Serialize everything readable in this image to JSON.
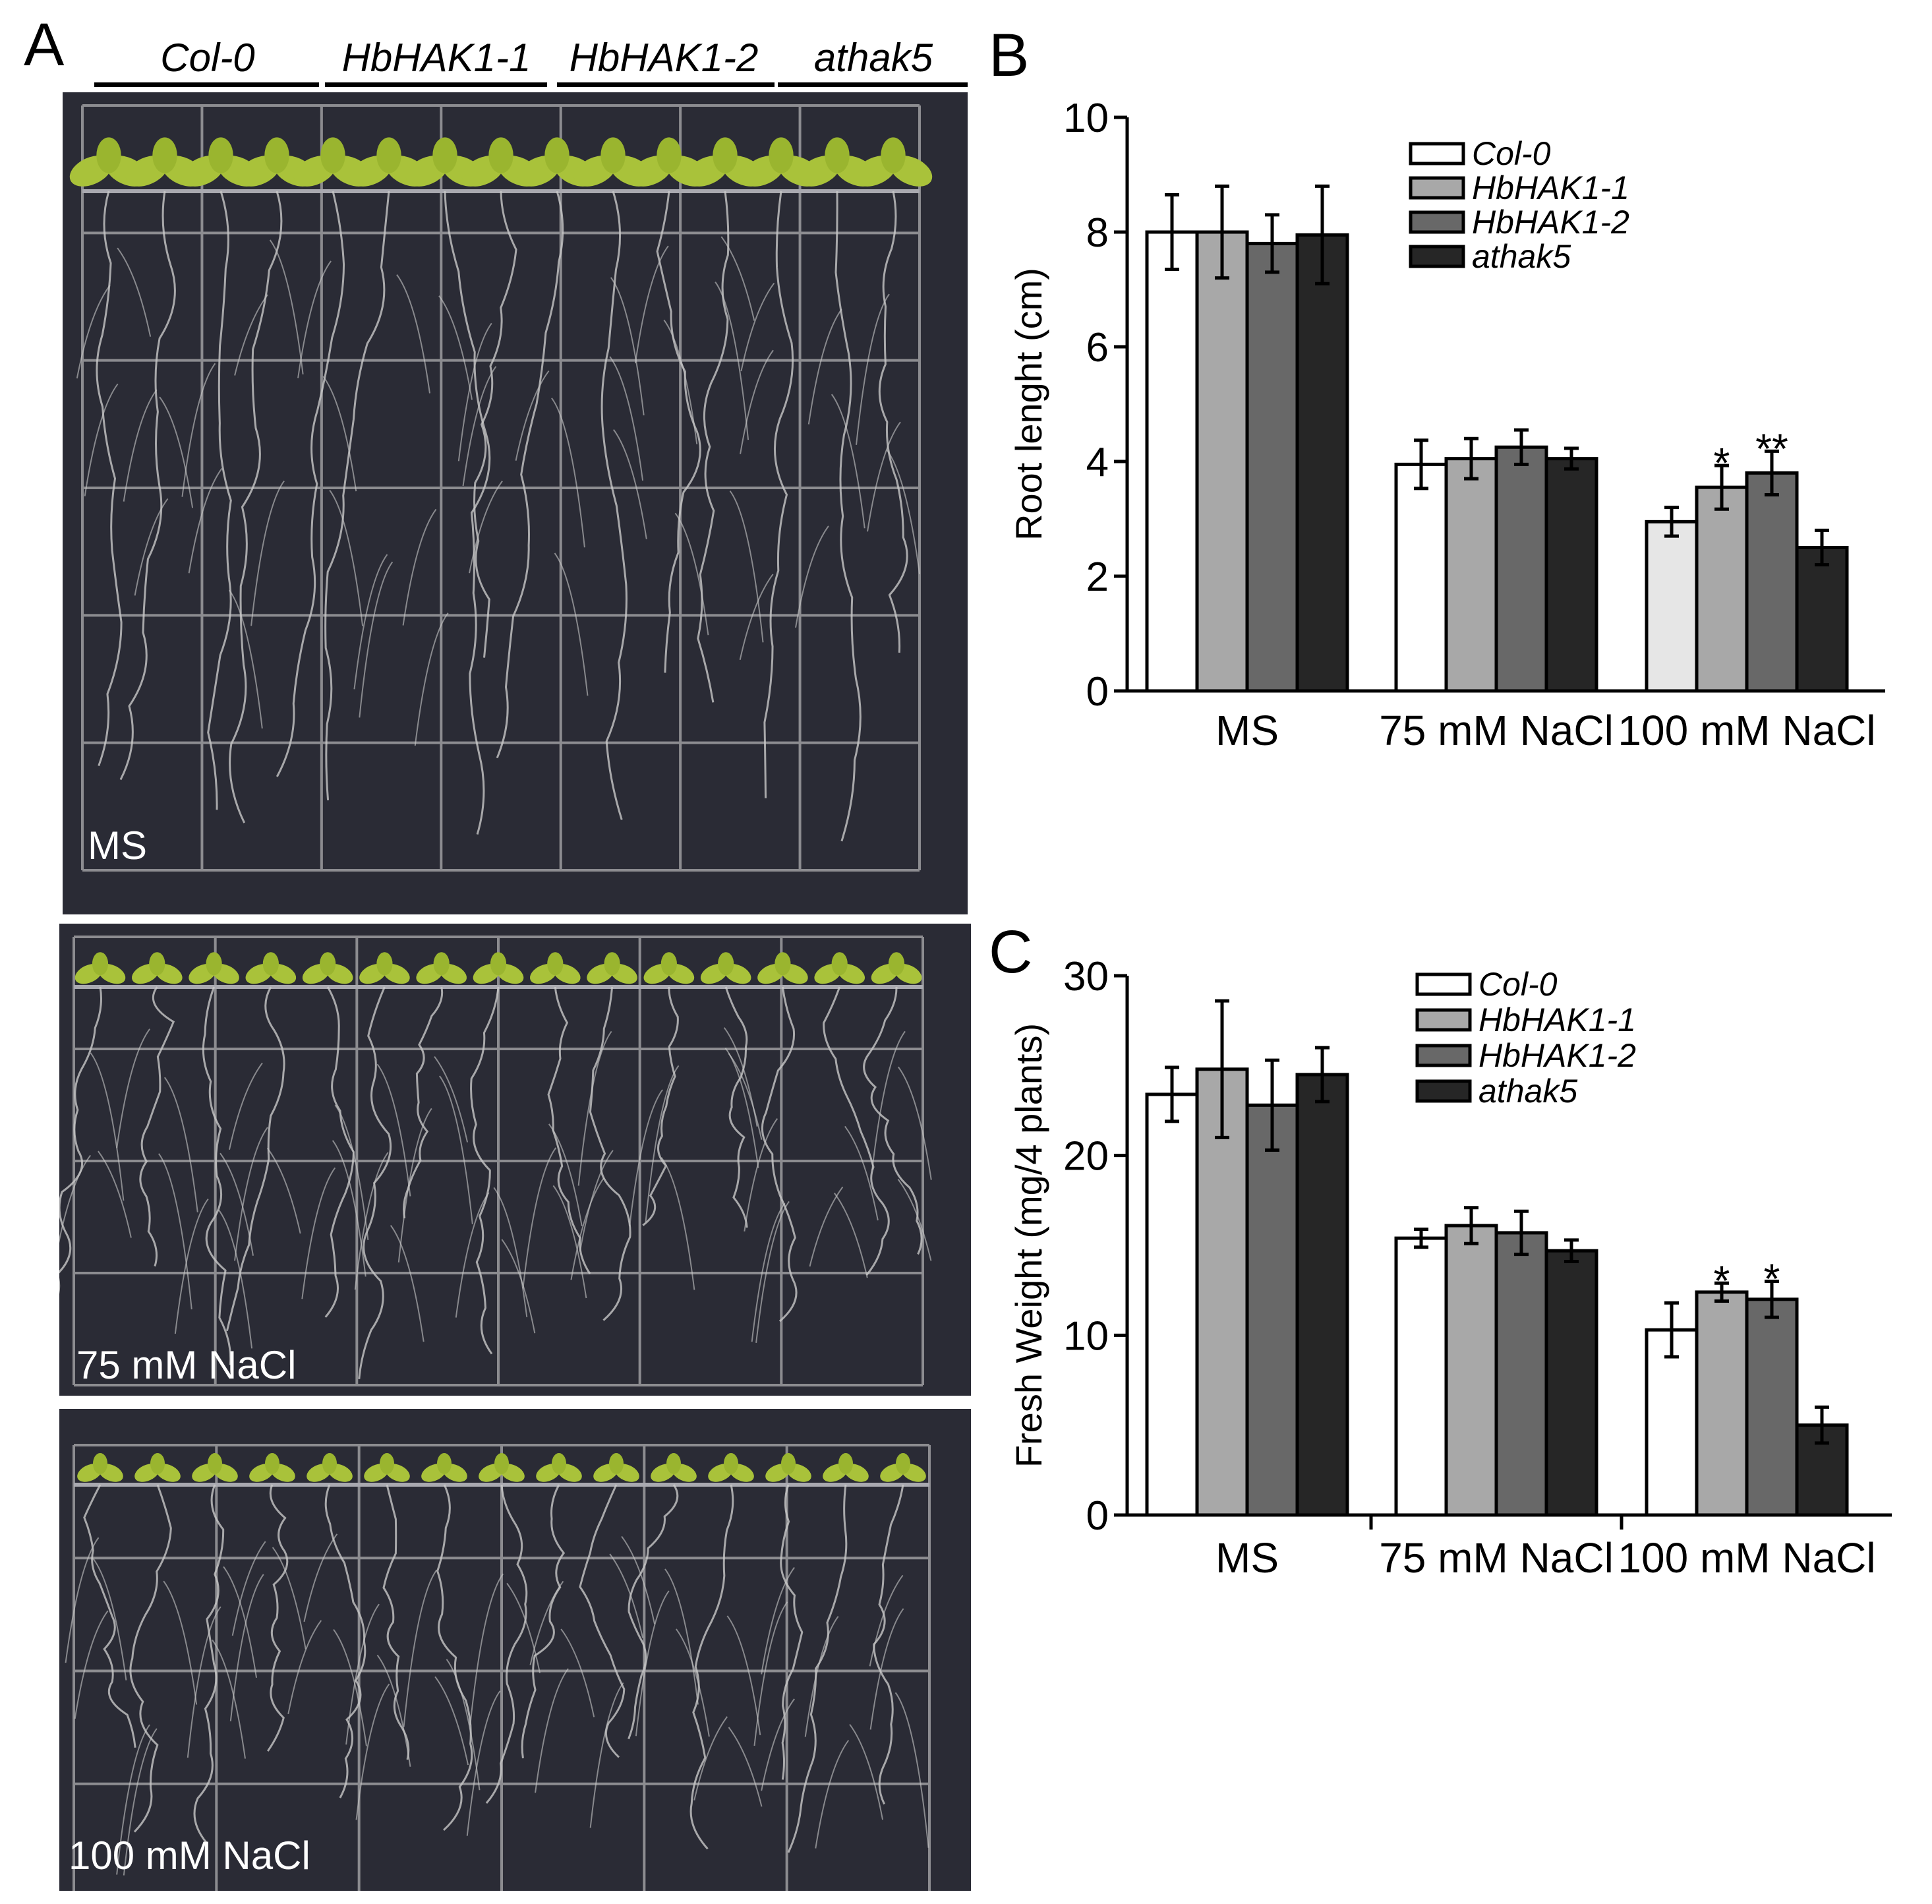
{
  "figure": {
    "panel_a": {
      "letter": "A",
      "genotypes": [
        "Col-0",
        "HbHAK1-1",
        "HbHAK1-2",
        "athak5"
      ],
      "plates": [
        {
          "label": "MS",
          "seedlings": 15
        },
        {
          "label": "75 mM NaCl",
          "seedlings": 15
        },
        {
          "label": "100 mM NaCl",
          "seedlings": 15
        }
      ]
    },
    "panel_b": {
      "letter": "B"
    },
    "panel_c": {
      "letter": "C"
    }
  },
  "colors": {
    "col0": "#ffffff",
    "hbhak1_1": "#a8a8a8",
    "hbhak1_2": "#686868",
    "athak5": "#262626",
    "col0_100mM_rootlength": "#e6e6e6",
    "plate_bg": "#2a2b35",
    "grid": "#8c8c90",
    "leaf": "#a9c23a",
    "root": "#c8c8c8"
  },
  "chart_data": [
    {
      "id": "root-length",
      "type": "bar",
      "title": "",
      "xlabel": "",
      "ylabel": "Root lenght (cm)",
      "ylim": [
        0,
        10
      ],
      "yticks": [
        0,
        2,
        4,
        6,
        8,
        10
      ],
      "categories": [
        "MS",
        "75 mM NaCl",
        "100 mM NaCl"
      ],
      "legend_position": "top-right",
      "series": [
        {
          "name": "Col-0",
          "values": [
            8.0,
            3.95,
            2.95
          ],
          "errors": [
            0.65,
            0.42,
            0.25
          ]
        },
        {
          "name": "HbHAK1-1",
          "values": [
            8.0,
            4.05,
            3.55
          ],
          "errors": [
            0.8,
            0.35,
            0.38
          ]
        },
        {
          "name": "HbHAK1-2",
          "values": [
            7.8,
            4.25,
            3.8
          ],
          "errors": [
            0.5,
            0.3,
            0.38
          ]
        },
        {
          "name": "athak5",
          "values": [
            7.95,
            4.05,
            2.5
          ],
          "errors": [
            0.85,
            0.18,
            0.3
          ]
        }
      ],
      "annotations": [
        {
          "category": "100 mM NaCl",
          "series": "HbHAK1-1",
          "text": "*"
        },
        {
          "category": "100 mM NaCl",
          "series": "HbHAK1-2",
          "text": "**"
        }
      ]
    },
    {
      "id": "fresh-weight",
      "type": "bar",
      "title": "",
      "xlabel": "",
      "ylabel": "Fresh Weight (mg/4 plants)",
      "ylim": [
        0,
        30
      ],
      "yticks": [
        0,
        10,
        20,
        30
      ],
      "categories": [
        "MS",
        "75 mM NaCl",
        "100 mM NaCl"
      ],
      "legend_position": "top-right",
      "series": [
        {
          "name": "Col-0",
          "values": [
            23.4,
            15.4,
            10.3
          ],
          "errors": [
            1.5,
            0.5,
            1.5
          ]
        },
        {
          "name": "HbHAK1-1",
          "values": [
            24.8,
            16.1,
            12.4
          ],
          "errors": [
            3.8,
            1.0,
            0.5
          ]
        },
        {
          "name": "HbHAK1-2",
          "values": [
            22.8,
            15.7,
            12.0
          ],
          "errors": [
            2.5,
            1.2,
            1.0
          ]
        },
        {
          "name": "athak5",
          "values": [
            24.5,
            14.7,
            5.0
          ],
          "errors": [
            1.5,
            0.6,
            1.0
          ]
        }
      ],
      "annotations": [
        {
          "category": "100 mM NaCl",
          "series": "HbHAK1-1",
          "text": "*"
        },
        {
          "category": "100 mM NaCl",
          "series": "HbHAK1-2",
          "text": "*"
        }
      ]
    }
  ]
}
